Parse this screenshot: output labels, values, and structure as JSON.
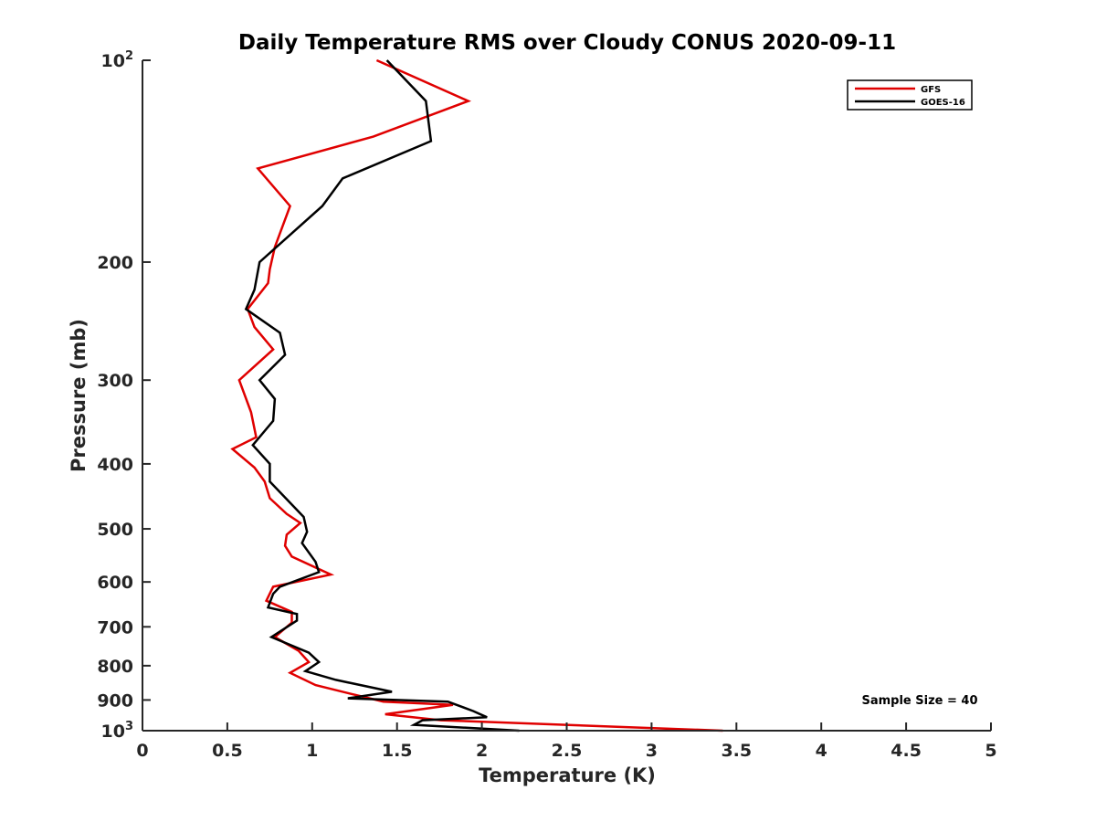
{
  "chart_data": {
    "type": "line",
    "title": "Daily Temperature RMS over Cloudy CONUS 2020-09-11",
    "xlabel": "Temperature (K)",
    "ylabel": "Pressure (mb)",
    "xlim": [
      0,
      5
    ],
    "ylim": [
      100,
      1000
    ],
    "y_scale": "log",
    "y_reversed": true,
    "x_ticks": [
      {
        "value": 0,
        "label": "0"
      },
      {
        "value": 0.5,
        "label": "0.5"
      },
      {
        "value": 1,
        "label": "1"
      },
      {
        "value": 1.5,
        "label": "1.5"
      },
      {
        "value": 2,
        "label": "2"
      },
      {
        "value": 2.5,
        "label": "2.5"
      },
      {
        "value": 3,
        "label": "3"
      },
      {
        "value": 3.5,
        "label": "3.5"
      },
      {
        "value": 4,
        "label": "4"
      },
      {
        "value": 4.5,
        "label": "4.5"
      },
      {
        "value": 5,
        "label": "5"
      }
    ],
    "y_ticks": [
      {
        "value": 100,
        "label": "10",
        "sup": "2"
      },
      {
        "value": 200,
        "label": "200"
      },
      {
        "value": 300,
        "label": "300"
      },
      {
        "value": 400,
        "label": "400"
      },
      {
        "value": 500,
        "label": "500"
      },
      {
        "value": 600,
        "label": "600"
      },
      {
        "value": 700,
        "label": "700"
      },
      {
        "value": 800,
        "label": "800"
      },
      {
        "value": 900,
        "label": "900"
      },
      {
        "value": 1000,
        "label": "10",
        "sup": "3"
      }
    ],
    "grid": false,
    "legend_position": "top-right",
    "series": [
      {
        "name": "GFS",
        "color": "#e00000",
        "points": [
          [
            1.38,
            100
          ],
          [
            1.92,
            115
          ],
          [
            1.36,
            130
          ],
          [
            0.68,
            145
          ],
          [
            0.87,
            165
          ],
          [
            0.78,
            190
          ],
          [
            0.75,
            205
          ],
          [
            0.74,
            215
          ],
          [
            0.62,
            235
          ],
          [
            0.66,
            250
          ],
          [
            0.77,
            270
          ],
          [
            0.57,
            300
          ],
          [
            0.64,
            335
          ],
          [
            0.67,
            365
          ],
          [
            0.53,
            380
          ],
          [
            0.66,
            405
          ],
          [
            0.72,
            425
          ],
          [
            0.75,
            450
          ],
          [
            0.85,
            475
          ],
          [
            0.93,
            490
          ],
          [
            0.85,
            510
          ],
          [
            0.84,
            530
          ],
          [
            0.88,
            550
          ],
          [
            1.11,
            585
          ],
          [
            0.77,
            610
          ],
          [
            0.73,
            640
          ],
          [
            0.88,
            665
          ],
          [
            0.88,
            690
          ],
          [
            0.78,
            725
          ],
          [
            0.92,
            760
          ],
          [
            0.98,
            790
          ],
          [
            0.87,
            820
          ],
          [
            1.02,
            855
          ],
          [
            1.22,
            880
          ],
          [
            1.42,
            905
          ],
          [
            1.83,
            915
          ],
          [
            1.43,
            945
          ],
          [
            1.76,
            965
          ],
          [
            3.42,
            1000
          ]
        ]
      },
      {
        "name": "GOES-16",
        "color": "#000000",
        "points": [
          [
            1.44,
            100
          ],
          [
            1.67,
            115
          ],
          [
            1.7,
            132
          ],
          [
            1.18,
            150
          ],
          [
            1.06,
            165
          ],
          [
            0.69,
            200
          ],
          [
            0.66,
            220
          ],
          [
            0.61,
            235
          ],
          [
            0.81,
            255
          ],
          [
            0.84,
            275
          ],
          [
            0.69,
            300
          ],
          [
            0.78,
            320
          ],
          [
            0.77,
            345
          ],
          [
            0.65,
            375
          ],
          [
            0.75,
            400
          ],
          [
            0.75,
            425
          ],
          [
            0.95,
            480
          ],
          [
            0.97,
            505
          ],
          [
            0.94,
            525
          ],
          [
            1.02,
            560
          ],
          [
            1.04,
            580
          ],
          [
            0.81,
            610
          ],
          [
            0.77,
            625
          ],
          [
            0.74,
            655
          ],
          [
            0.91,
            670
          ],
          [
            0.91,
            685
          ],
          [
            0.76,
            725
          ],
          [
            0.98,
            765
          ],
          [
            1.04,
            790
          ],
          [
            0.96,
            815
          ],
          [
            1.14,
            840
          ],
          [
            1.47,
            875
          ],
          [
            1.21,
            895
          ],
          [
            1.8,
            905
          ],
          [
            1.95,
            935
          ],
          [
            2.03,
            955
          ],
          [
            1.65,
            965
          ],
          [
            1.6,
            980
          ],
          [
            2.22,
            1000
          ]
        ]
      }
    ],
    "annotations": [
      {
        "text": "Sample Size = 40",
        "position": "lower-right"
      }
    ]
  }
}
